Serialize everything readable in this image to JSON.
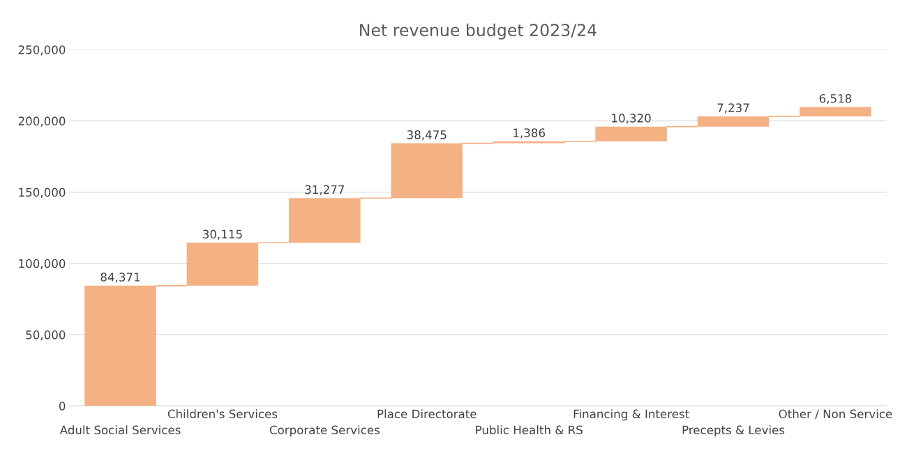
{
  "chart_data": {
    "type": "bar",
    "title": "Net revenue budget 2023/24",
    "categories": [
      "Adult Social Services",
      "Children's Services",
      "Corporate Services",
      "Place Directorate",
      "Public Health & RS",
      "Financing & Interest",
      "Precepts & Levies",
      "Other / Non Service"
    ],
    "values": [
      84371,
      30115,
      31277,
      38475,
      1386,
      10320,
      7237,
      6518
    ],
    "base": [
      0,
      84371,
      114486,
      145763,
      184238,
      185624,
      195944,
      203181
    ],
    "color": "#f4b183",
    "ylim": [
      0,
      250000
    ],
    "yticks": [
      {
        "value": 0,
        "label": "0"
      },
      {
        "value": 50000,
        "label": "50,000"
      },
      {
        "value": 100000,
        "label": "100,000"
      },
      {
        "value": 150000,
        "label": "150,000"
      },
      {
        "value": 200000,
        "label": "200,000"
      },
      {
        "value": 250000,
        "label": "250,000"
      }
    ],
    "value_labels": [
      "84,371",
      "30,115",
      "31,277",
      "38,475",
      "1,386",
      "10,320",
      "7,237",
      "6,518"
    ],
    "grid": "y"
  }
}
